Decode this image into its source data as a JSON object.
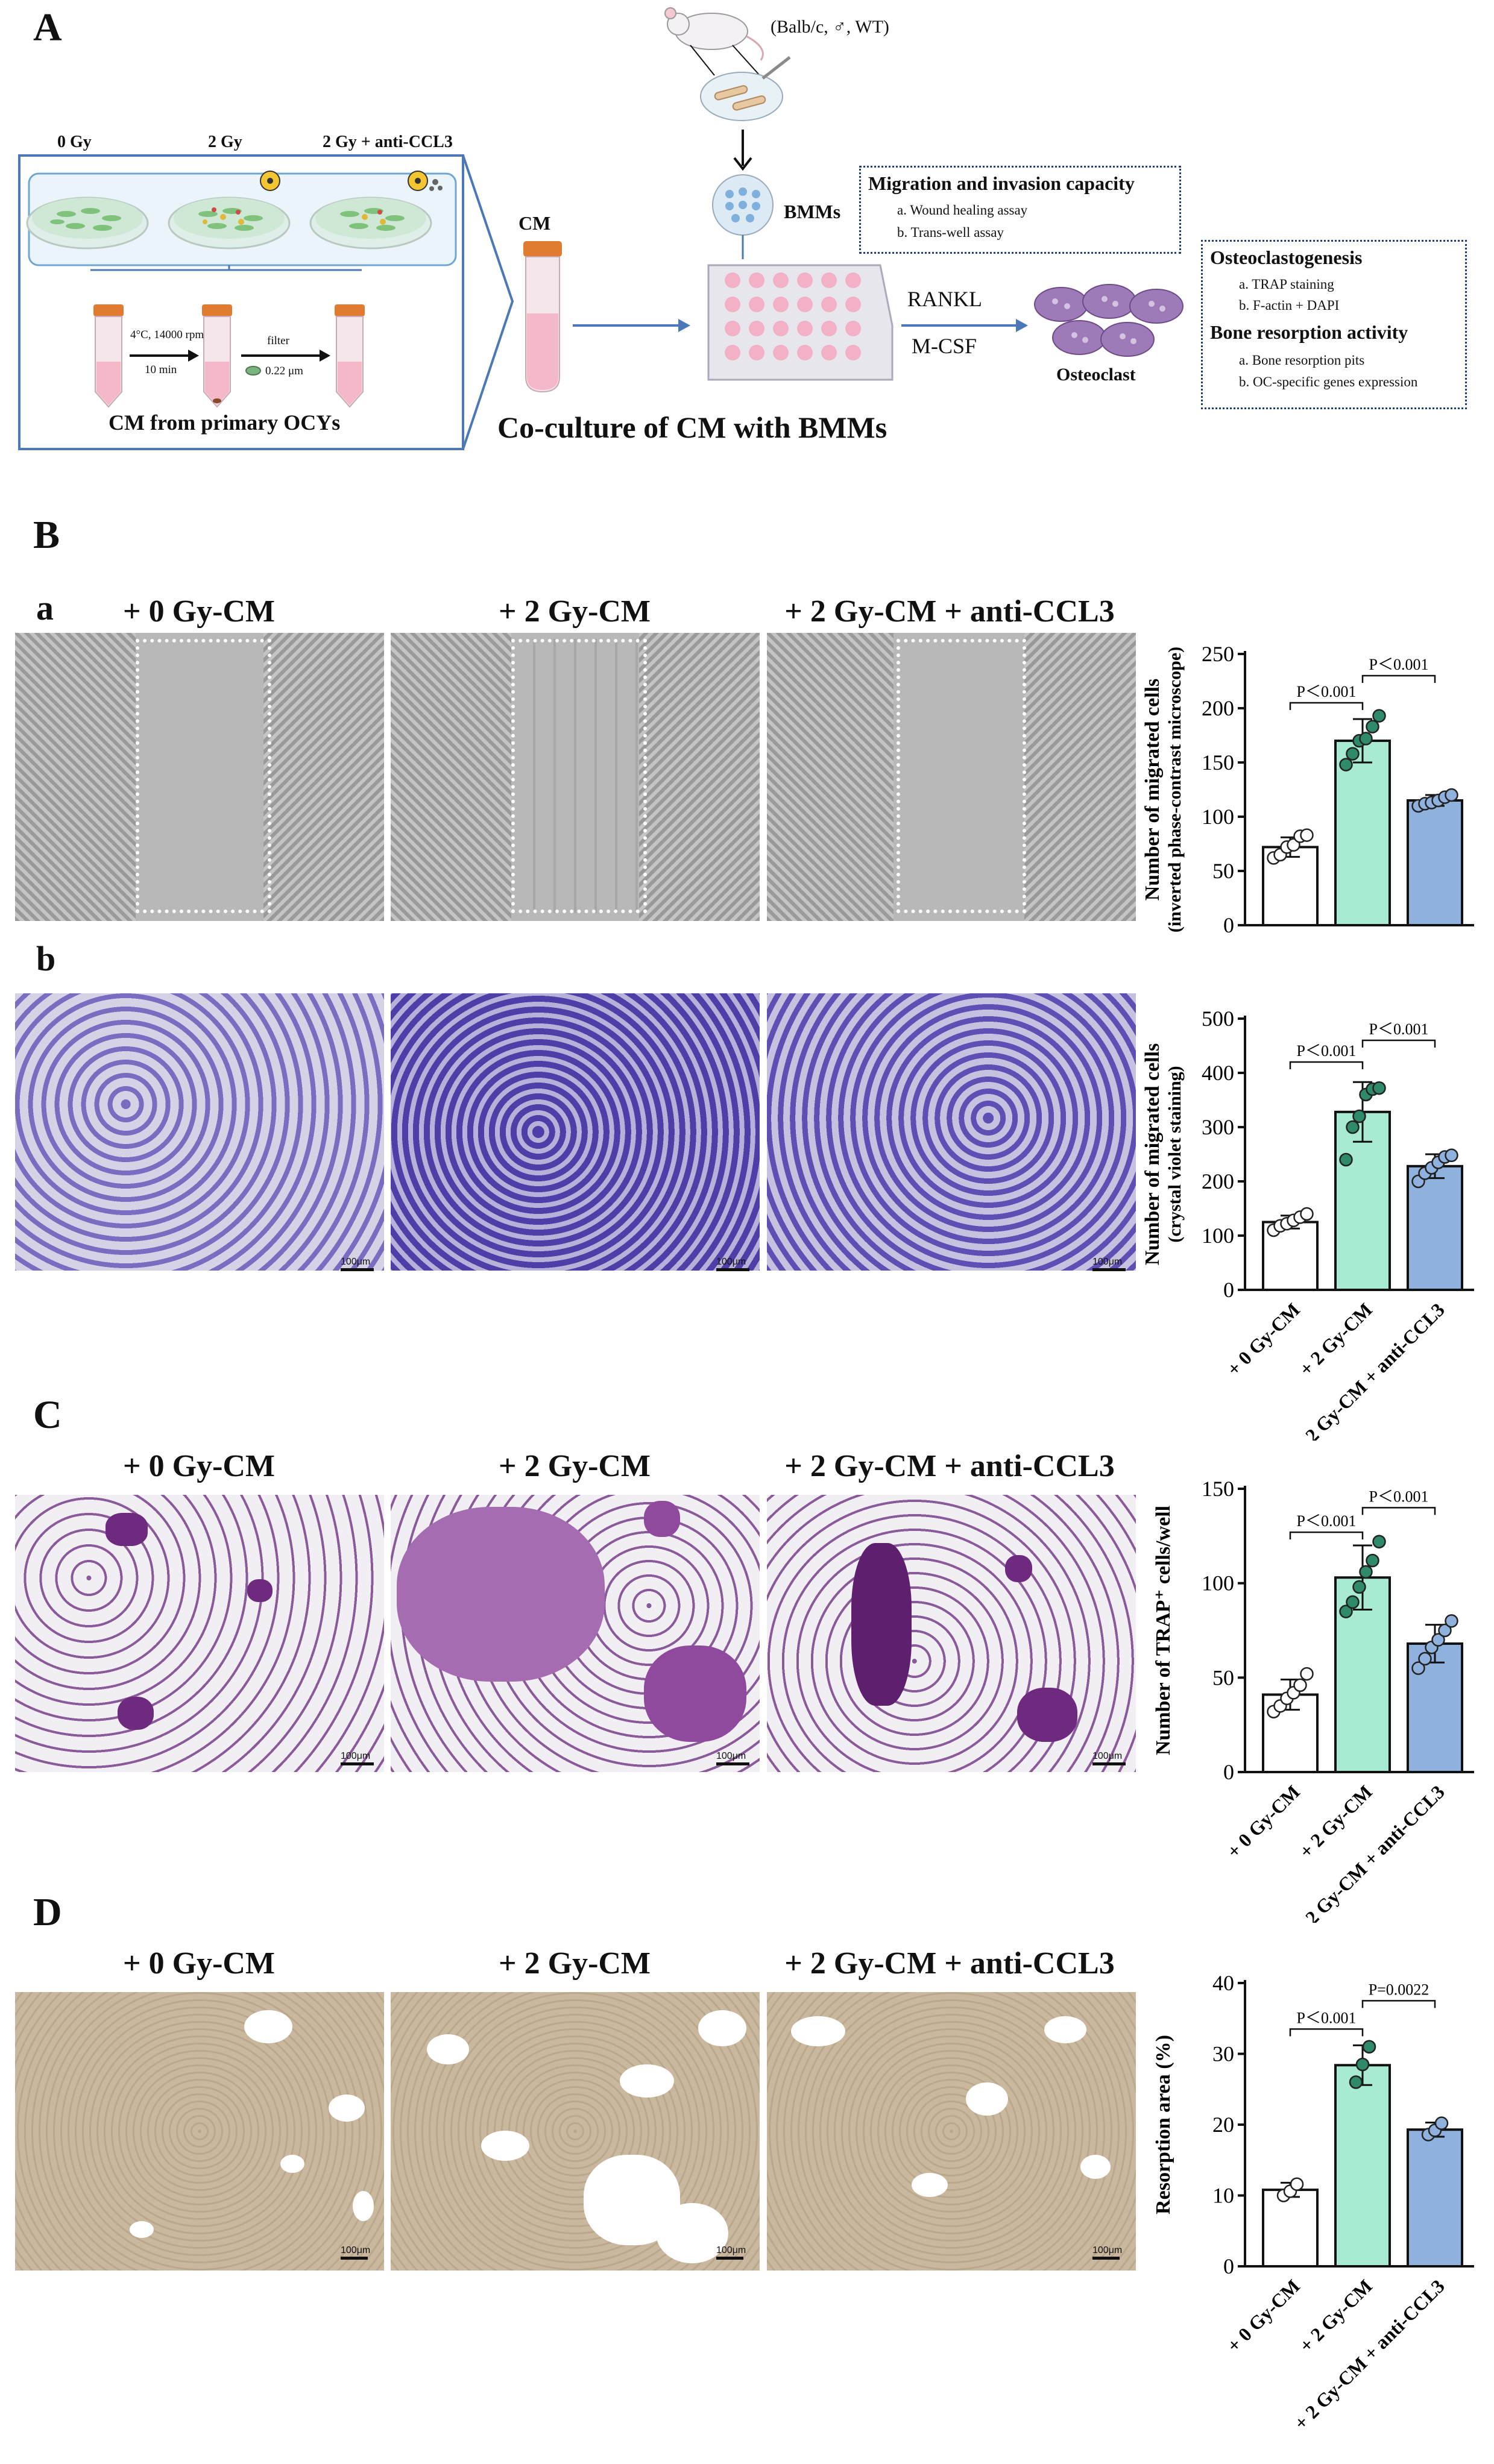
{
  "panel_A": {
    "letter": "A",
    "doses": [
      "0 Gy",
      "2 Gy",
      "2 Gy + anti-CCL3"
    ],
    "centrifuge": {
      "line1": "4°C, 14000 rpm",
      "line2": "10 min"
    },
    "filter": {
      "line1": "filter",
      "line2": "0.22 μm"
    },
    "cm_source": "CM from primary OCYs",
    "cm_tube_label": "CM",
    "mouse_label": "(Balb/c, ♂, WT)",
    "bmms_label": "BMMs",
    "migration_box": {
      "title": "Migration and invasion capacity",
      "items": [
        "a. Wound healing assay",
        "b. Trans-well assay"
      ]
    },
    "osteoclast_box": {
      "title1": "Osteoclastogenesis",
      "items1": [
        "a. TRAP staining",
        "b. F-actin + DAPI"
      ],
      "title2": "Bone resorption activity",
      "items2": [
        "a. Bone resorption pits",
        "b. OC-specific genes expression"
      ]
    },
    "rankl": "RANKL",
    "mcsf": "M-CSF",
    "osteoclast": "Osteoclast",
    "coculture": "Co-culture of CM with BMMs"
  },
  "conditions": [
    "+ 0 Gy-CM",
    "+ 2 Gy-CM",
    "+ 2 Gy-CM + anti-CCL3"
  ],
  "xcats": [
    "+ 0 Gy-CM",
    "+ 2 Gy-CM",
    "+ 2 Gy-CM + anti-CCL3"
  ],
  "panel_B": {
    "letter": "B",
    "sub_a": "a",
    "sub_b": "b"
  },
  "panel_C": {
    "letter": "C"
  },
  "panel_D": {
    "letter": "D"
  },
  "scale_label": "100μm",
  "colors": {
    "white_bar": "#ffffff",
    "green_bar": "#a8ebd2",
    "blue_bar": "#8fb1dd",
    "green_dot": "#2f8a6a",
    "blue_dot": "#8fb1dd",
    "arrow": "#4a78b8",
    "box_border": "#5a8cc0"
  },
  "chart_data": [
    {
      "id": "Ba",
      "type": "bar",
      "ylabel_lines": [
        "Number of migrated cells",
        "(inverted phase-contrast microscope)"
      ],
      "ylim": [
        0,
        250
      ],
      "yticks": [
        0,
        50,
        100,
        150,
        200,
        250
      ],
      "values": [
        72,
        170,
        115
      ],
      "errors": [
        9,
        20,
        5
      ],
      "points": [
        [
          62,
          65,
          72,
          74,
          82,
          83
        ],
        [
          148,
          158,
          170,
          172,
          183,
          193
        ],
        [
          110,
          112,
          113,
          115,
          118,
          120
        ]
      ],
      "comparisons": [
        {
          "from": 0,
          "to": 1,
          "label": "P＜0.001",
          "y": 205
        },
        {
          "from": 1,
          "to": 2,
          "label": "P＜0.001",
          "y": 230
        }
      ],
      "show_xlabels": false
    },
    {
      "id": "Bb",
      "type": "bar",
      "ylabel_lines": [
        "Number of migrated cells",
        "(crystal violet staining)"
      ],
      "ylim": [
        0,
        500
      ],
      "yticks": [
        0,
        100,
        200,
        300,
        400,
        500
      ],
      "values": [
        125,
        328,
        228
      ],
      "errors": [
        12,
        55,
        22
      ],
      "points": [
        [
          110,
          118,
          122,
          128,
          134,
          140
        ],
        [
          240,
          300,
          320,
          360,
          370,
          372
        ],
        [
          200,
          215,
          225,
          235,
          245,
          248
        ]
      ],
      "comparisons": [
        {
          "from": 0,
          "to": 1,
          "label": "P＜0.001",
          "y": 420
        },
        {
          "from": 1,
          "to": 2,
          "label": "P＜0.001",
          "y": 460
        }
      ],
      "show_xlabels": true
    },
    {
      "id": "C",
      "type": "bar",
      "ylabel_lines": [
        "Number of TRAP⁺ cells/well"
      ],
      "ylim": [
        0,
        150
      ],
      "yticks": [
        0,
        50,
        100,
        150
      ],
      "values": [
        41,
        103,
        68
      ],
      "errors": [
        8,
        17,
        10
      ],
      "points": [
        [
          32,
          35,
          39,
          42,
          46,
          52
        ],
        [
          85,
          90,
          98,
          106,
          112,
          122
        ],
        [
          55,
          60,
          66,
          70,
          75,
          80
        ]
      ],
      "comparisons": [
        {
          "from": 0,
          "to": 1,
          "label": "P＜0.001",
          "y": 127
        },
        {
          "from": 1,
          "to": 2,
          "label": "P＜0.001",
          "y": 140
        }
      ],
      "show_xlabels": true
    },
    {
      "id": "D",
      "type": "bar",
      "ylabel_lines": [
        "Resorption area (%)"
      ],
      "ylim": [
        0,
        40
      ],
      "yticks": [
        0,
        10,
        20,
        30,
        40
      ],
      "values": [
        10.8,
        28.4,
        19.3
      ],
      "errors": [
        1.0,
        2.8,
        1.0
      ],
      "points": [
        [
          10.0,
          10.6,
          11.6
        ],
        [
          26.0,
          28.5,
          31.0
        ],
        [
          18.6,
          19.2,
          20.2
        ]
      ],
      "comparisons": [
        {
          "from": 0,
          "to": 1,
          "label": "P＜0.001",
          "y": 33.5
        },
        {
          "from": 1,
          "to": 2,
          "label": "P=0.0022",
          "y": 37.5
        }
      ],
      "show_xlabels": true
    }
  ]
}
